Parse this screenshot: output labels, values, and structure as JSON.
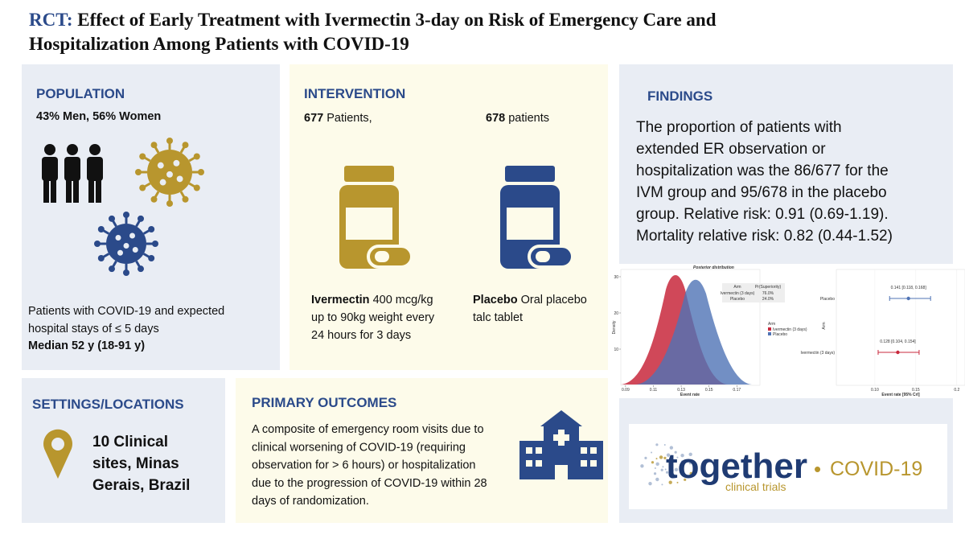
{
  "header": {
    "prefix": "RCT:",
    "title_lines": [
      "Effect of Early Treatment with Ivermectin 3-day on Risk of Emergency Care and",
      "Hospitalization Among Patients with COVID-19"
    ]
  },
  "population": {
    "heading": "POPULATION",
    "sex": "43% Men, 56% Women",
    "lines": [
      "Patients with COVID-19 and expected",
      "hospital stays of ≤ 5 days"
    ],
    "median": "Median 52 y (18-91 y)"
  },
  "intervention": {
    "heading": "INTERVENTION",
    "ivermectin": {
      "count": "677",
      "count_text": " Patients,",
      "name": "Ivermectin",
      "lines": [
        " 400 mcg/kg",
        "up to 90kg weight every",
        "24 hours for 3 days"
      ]
    },
    "placebo": {
      "count": "678",
      "count_text": " patients",
      "name": "Placebo",
      "lines": [
        " Oral placebo",
        "talc tablet"
      ]
    }
  },
  "findings": {
    "heading": "FINDINGS",
    "lines": [
      "The proportion of patients with",
      "extended ER observation or",
      "hospitalization was the 86/677 for the",
      "IVM group and 95/678 in the placebo",
      "group. Relative risk: 0.91 (0.69-1.19).",
      "Mortality relative risk: 0.82 (0.44-1.52)"
    ]
  },
  "posterior": {
    "title": "Posterior distribution",
    "xlabel": "Event rate",
    "ylabel": "Density",
    "xlim": [
      0.0866,
      0.1866
    ],
    "ylim": [
      0,
      32
    ],
    "xticks": [
      0.09,
      0.11,
      0.13,
      0.15,
      0.17
    ],
    "yticks": [
      10,
      20,
      30
    ],
    "legend_title": "Arm",
    "legend": [
      {
        "name": "Ivermectin (3 days)",
        "color": "#c8283c"
      },
      {
        "name": "Placebo",
        "color": "#4f73b5"
      }
    ],
    "table": {
      "header": [
        "Arm",
        "Pr(Superiority)"
      ],
      "rows": [
        [
          "Ivermectin (3 days)",
          "76.0%"
        ],
        [
          "Placebo",
          "24.0%"
        ]
      ]
    }
  },
  "forest": {
    "xlabel": "Event rate [95% CrI]",
    "ylabel": "Arm",
    "xlim": [
      0.053,
      0.21
    ],
    "xticks": [
      {
        "value": 0.1,
        "label": "0.10"
      },
      {
        "value": 0.15,
        "label": "0.15"
      },
      0.2
    ],
    "rows": [
      {
        "label": "Placebo",
        "estimate": 0.141,
        "lower": 0.118,
        "upper": 0.168,
        "value_label": "0.141 [0.118, 0.168]",
        "color": "#4f73b5"
      },
      {
        "label": "Ivermectin (3 days)",
        "estimate": 0.128,
        "lower": 0.104,
        "upper": 0.154,
        "value_label": "0.128 [0.104, 0.154]",
        "color": "#c8283c"
      }
    ]
  },
  "settings": {
    "heading": "SETTINGS/LOCATIONS",
    "lines": [
      "10 Clinical",
      "sites, Minas",
      "Gerais, Brazil"
    ]
  },
  "outcomes": {
    "heading": "PRIMARY OUTCOMES",
    "lines": [
      " A composite of emergency room visits due to",
      "clinical worsening of COVID-19  (requiring",
      "observation for > 6 hours) or hospitalization",
      "due to the progression of COVID-19 within 28",
      "days of randomization."
    ]
  },
  "logo": {
    "word": "together",
    "dot": "•",
    "tag": "COVID-19",
    "sub": "clinical trials"
  }
}
